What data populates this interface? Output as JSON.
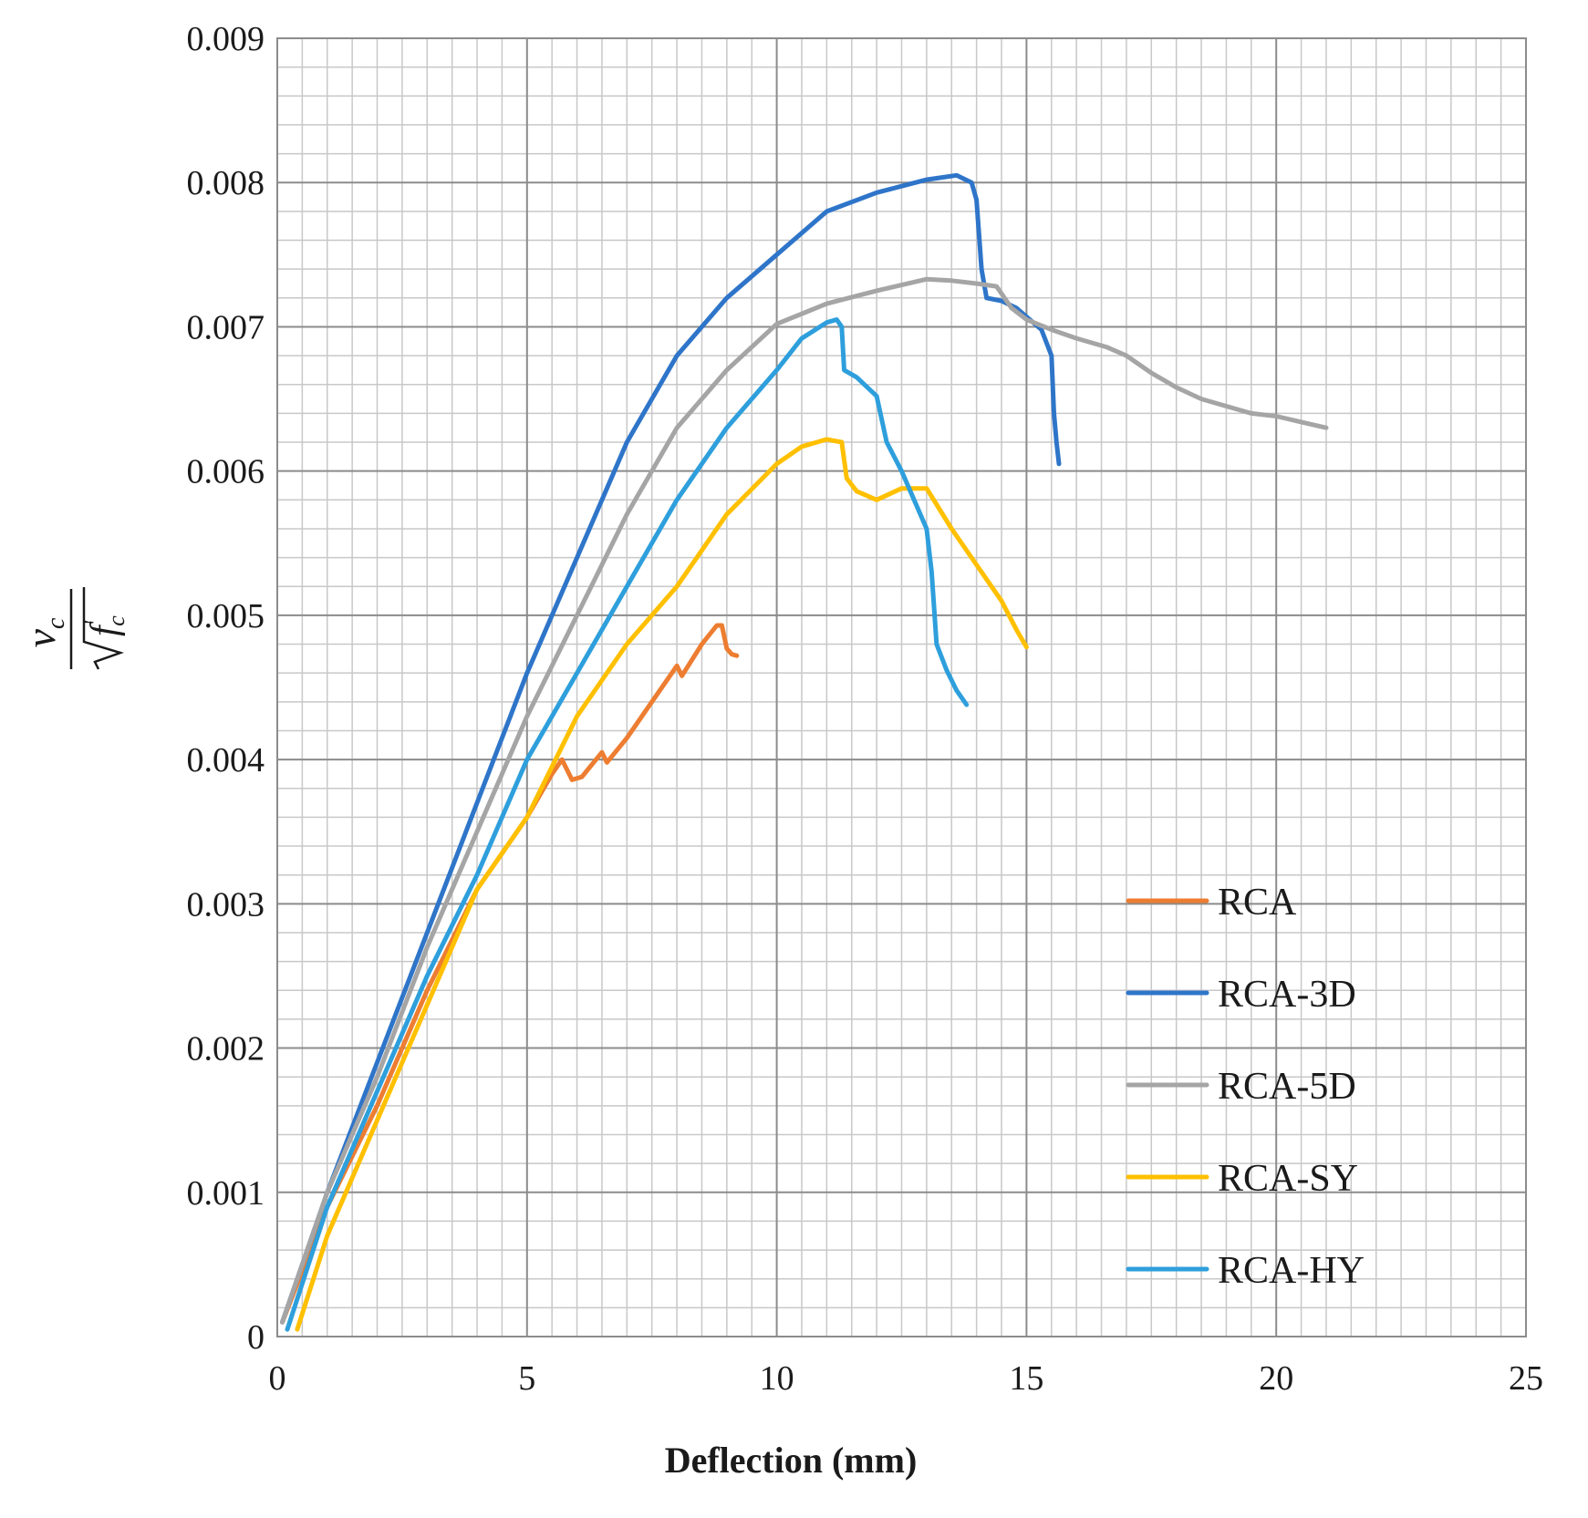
{
  "chart_data": {
    "type": "line",
    "title": "",
    "xlabel": "Deflection (mm)",
    "ylabel": {
      "numerator": "v",
      "numerator_sub": "c",
      "denominator": "f",
      "denominator_sup": "'",
      "denominator_sub": "c",
      "text": "v_c / sqrt(f'_c)"
    },
    "xlim": [
      0,
      25
    ],
    "ylim": [
      0,
      0.009
    ],
    "x_ticks": [
      0,
      5,
      10,
      15,
      20,
      25
    ],
    "x_tick_labels": [
      "0",
      "5",
      "10",
      "15",
      "20",
      "25"
    ],
    "y_ticks": [
      0,
      0.001,
      0.002,
      0.003,
      0.004,
      0.005,
      0.006,
      0.007,
      0.008,
      0.009
    ],
    "y_tick_labels": [
      "0",
      "0.001",
      "0.002",
      "0.003",
      "0.004",
      "0.005",
      "0.006",
      "0.007",
      "0.008",
      "0.009"
    ],
    "grid": true,
    "minor_grid": {
      "x_step": 0.5,
      "y_step": 0.0002
    },
    "legend_position": "lower-right",
    "series": [
      {
        "name": "RCA",
        "color": "#ED7D31",
        "points": [
          [
            0.1,
            0.0001
          ],
          [
            1,
            0.0009
          ],
          [
            2,
            0.0016
          ],
          [
            3,
            0.0024
          ],
          [
            4,
            0.0031
          ],
          [
            5,
            0.0036
          ],
          [
            5.5,
            0.0039
          ],
          [
            5.7,
            0.004
          ],
          [
            5.9,
            0.00386
          ],
          [
            6.1,
            0.00388
          ],
          [
            6.5,
            0.00405
          ],
          [
            6.6,
            0.00398
          ],
          [
            7,
            0.00415
          ],
          [
            7.5,
            0.0044
          ],
          [
            8,
            0.00465
          ],
          [
            8.1,
            0.00458
          ],
          [
            8.5,
            0.0048
          ],
          [
            8.8,
            0.00493
          ],
          [
            8.9,
            0.00493
          ],
          [
            9.0,
            0.00477
          ],
          [
            9.1,
            0.00473
          ],
          [
            9.2,
            0.00472
          ]
        ]
      },
      {
        "name": "RCA-3D",
        "color": "#2E75C9",
        "points": [
          [
            0.1,
            0.0001
          ],
          [
            1,
            0.001
          ],
          [
            2,
            0.0019
          ],
          [
            3,
            0.0028
          ],
          [
            4,
            0.0037
          ],
          [
            5,
            0.0046
          ],
          [
            6,
            0.0054
          ],
          [
            7,
            0.0062
          ],
          [
            8,
            0.0068
          ],
          [
            9,
            0.0072
          ],
          [
            10,
            0.0075
          ],
          [
            11,
            0.0078
          ],
          [
            12,
            0.00793
          ],
          [
            13,
            0.00802
          ],
          [
            13.6,
            0.00805
          ],
          [
            13.9,
            0.008
          ],
          [
            14.0,
            0.00788
          ],
          [
            14.1,
            0.0074
          ],
          [
            14.2,
            0.0072
          ],
          [
            14.5,
            0.00718
          ],
          [
            14.8,
            0.00713
          ],
          [
            15.3,
            0.00698
          ],
          [
            15.5,
            0.0068
          ],
          [
            15.55,
            0.0064
          ],
          [
            15.6,
            0.0062
          ],
          [
            15.65,
            0.00605
          ]
        ]
      },
      {
        "name": "RCA-5D",
        "color": "#A5A5A5",
        "points": [
          [
            0.1,
            0.0001
          ],
          [
            1,
            0.001
          ],
          [
            2,
            0.0018
          ],
          [
            3,
            0.0027
          ],
          [
            4,
            0.0035
          ],
          [
            5,
            0.0043
          ],
          [
            6,
            0.005
          ],
          [
            7,
            0.0057
          ],
          [
            8,
            0.0063
          ],
          [
            9,
            0.0067
          ],
          [
            10,
            0.00702
          ],
          [
            11,
            0.00716
          ],
          [
            12,
            0.00725
          ],
          [
            13,
            0.00733
          ],
          [
            13.5,
            0.00732
          ],
          [
            14.0,
            0.0073
          ],
          [
            14.4,
            0.00728
          ],
          [
            14.7,
            0.00713
          ],
          [
            15,
            0.00705
          ],
          [
            15.5,
            0.00698
          ],
          [
            16,
            0.00692
          ],
          [
            16.6,
            0.00686
          ],
          [
            17,
            0.0068
          ],
          [
            17.5,
            0.00668
          ],
          [
            18,
            0.00658
          ],
          [
            18.5,
            0.0065
          ],
          [
            19,
            0.00645
          ],
          [
            19.5,
            0.0064
          ],
          [
            20,
            0.00638
          ],
          [
            20.5,
            0.00634
          ],
          [
            21.0,
            0.0063
          ]
        ]
      },
      {
        "name": "RCA-SY",
        "color": "#FFC000",
        "points": [
          [
            0.4,
            5e-05
          ],
          [
            1,
            0.0007
          ],
          [
            2,
            0.0015
          ],
          [
            3,
            0.0023
          ],
          [
            4,
            0.0031
          ],
          [
            5,
            0.0036
          ],
          [
            6,
            0.0043
          ],
          [
            7,
            0.0048
          ],
          [
            8,
            0.0052
          ],
          [
            9,
            0.0057
          ],
          [
            10,
            0.00605
          ],
          [
            10.5,
            0.00617
          ],
          [
            11,
            0.00622
          ],
          [
            11.3,
            0.0062
          ],
          [
            11.4,
            0.00595
          ],
          [
            11.6,
            0.00586
          ],
          [
            12,
            0.0058
          ],
          [
            12.5,
            0.00588
          ],
          [
            13,
            0.00588
          ],
          [
            13.5,
            0.0056
          ],
          [
            14,
            0.00535
          ],
          [
            14.5,
            0.0051
          ],
          [
            14.8,
            0.0049
          ],
          [
            15.0,
            0.00478
          ]
        ]
      },
      {
        "name": "RCA-HY",
        "color": "#2E9FDC",
        "points": [
          [
            0.2,
            5e-05
          ],
          [
            1,
            0.0009
          ],
          [
            2,
            0.0017
          ],
          [
            3,
            0.0025
          ],
          [
            4,
            0.0032
          ],
          [
            5,
            0.004
          ],
          [
            6,
            0.0046
          ],
          [
            7,
            0.0052
          ],
          [
            8,
            0.0058
          ],
          [
            9,
            0.0063
          ],
          [
            10,
            0.0067
          ],
          [
            10.5,
            0.00692
          ],
          [
            11,
            0.00703
          ],
          [
            11.2,
            0.00705
          ],
          [
            11.3,
            0.007
          ],
          [
            11.35,
            0.0067
          ],
          [
            11.6,
            0.00665
          ],
          [
            12,
            0.00652
          ],
          [
            12.2,
            0.0062
          ],
          [
            12.5,
            0.006
          ],
          [
            13,
            0.0056
          ],
          [
            13.1,
            0.0053
          ],
          [
            13.2,
            0.0048
          ],
          [
            13.4,
            0.00462
          ],
          [
            13.6,
            0.00448
          ],
          [
            13.8,
            0.00438
          ]
        ]
      }
    ]
  }
}
